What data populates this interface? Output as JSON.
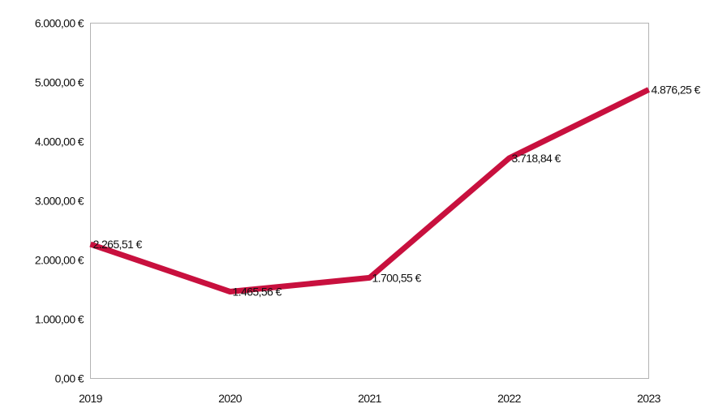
{
  "chart_data": {
    "type": "line",
    "title": "",
    "xlabel": "",
    "ylabel": "",
    "categories": [
      "2019",
      "2020",
      "2021",
      "2022",
      "2023"
    ],
    "series": [
      {
        "values": [
          2265.51,
          1465.56,
          1700.55,
          3718.84,
          4876.25
        ],
        "labels": [
          "2.265,51 €",
          "1.465,56 €",
          "1.700,55 €",
          "3.718,84 €",
          "4.876,25 €"
        ],
        "color": "#c8103e"
      }
    ],
    "ylim": [
      0,
      6000
    ],
    "y_ticks": [
      0,
      1000,
      2000,
      3000,
      4000,
      5000,
      6000
    ],
    "y_tick_labels": [
      "0,00 €",
      "1.000,00 €",
      "2.000,00 €",
      "3.000,00 €",
      "4.000,00 €",
      "5.000,00 €",
      "6.000,00 €"
    ],
    "grid": false,
    "legend": "none"
  }
}
